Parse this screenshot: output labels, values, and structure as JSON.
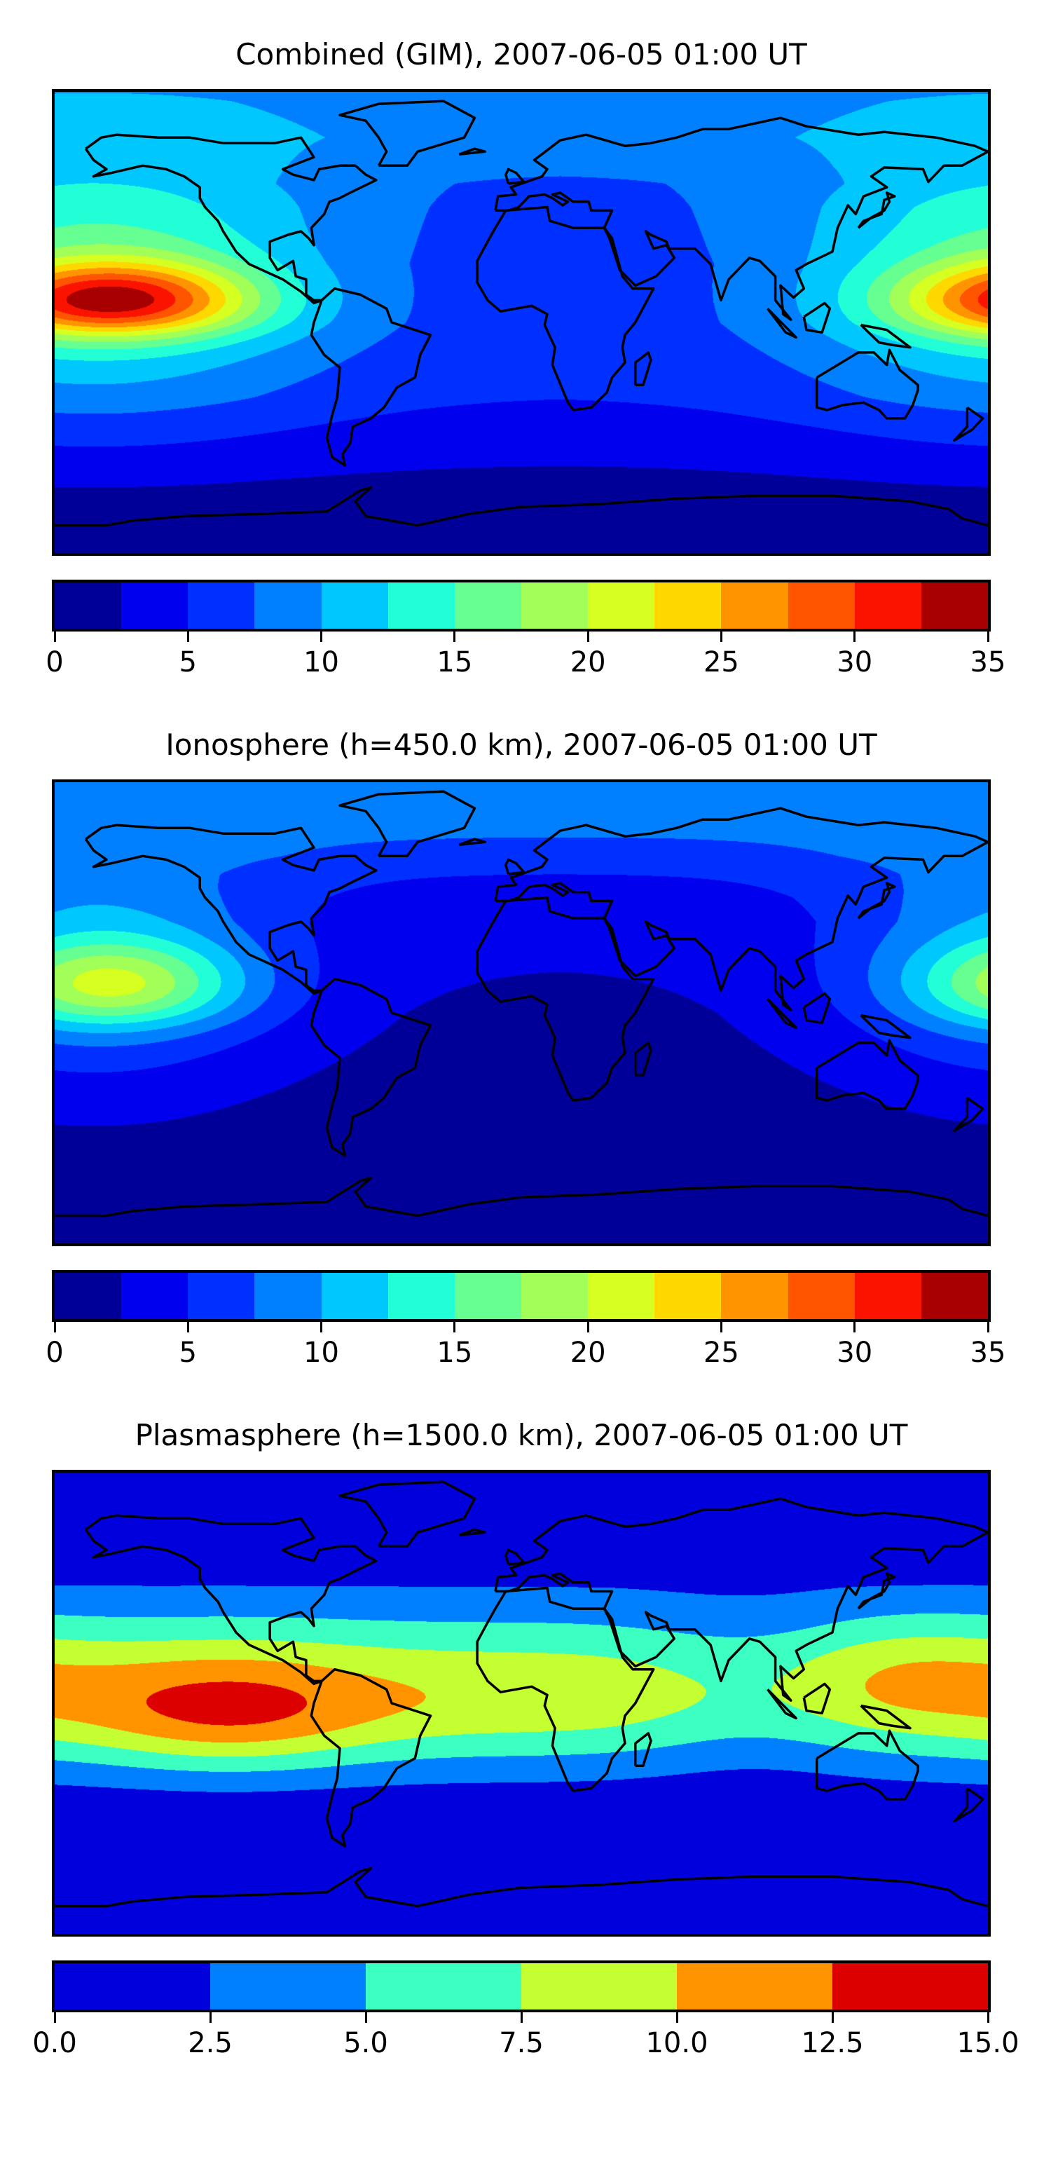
{
  "chart_data": [
    {
      "type": "heatmap",
      "subtype": "filled-contour world map",
      "title": "Combined (GIM), 2007-06-05 01:00 UT",
      "levels": [
        0,
        2.5,
        5,
        7.5,
        10,
        12.5,
        15,
        17.5,
        20,
        22.5,
        25,
        27.5,
        30,
        32.5,
        35
      ],
      "colors": [
        "#000099",
        "#0000ee",
        "#0030ff",
        "#0080ff",
        "#00c8ff",
        "#22ffd6",
        "#66ff92",
        "#a2ff58",
        "#d6ff22",
        "#ffd800",
        "#ff9400",
        "#ff5400",
        "#fa1400",
        "#a80000"
      ],
      "colorbar": {
        "ticks": [
          0,
          5,
          10,
          15,
          20,
          25,
          30,
          35
        ],
        "tick_labels": [
          "0",
          "5",
          "10",
          "15",
          "20",
          "25",
          "30",
          "35"
        ],
        "range": [
          0,
          35
        ],
        "placement": "bottom"
      },
      "features": {
        "max_value_approx": 34,
        "max_location_lonlat": [
          -160,
          8
        ],
        "secondary_max_lonlat": [
          180,
          5
        ],
        "min_region": "Antarctica / South Atlantic-Indian high southern latitudes"
      }
    },
    {
      "type": "heatmap",
      "subtype": "filled-contour world map",
      "title": "Ionosphere  (h=450.0 km), 2007-06-05 01:00 UT",
      "levels": [
        0,
        2.5,
        5,
        7.5,
        10,
        12.5,
        15,
        17.5,
        20,
        22.5,
        25,
        27.5,
        30,
        32.5,
        35
      ],
      "colors": [
        "#000099",
        "#0000ee",
        "#0030ff",
        "#0080ff",
        "#00c8ff",
        "#22ffd6",
        "#66ff92",
        "#a2ff58",
        "#d6ff22",
        "#ffd800",
        "#ff9400",
        "#ff5400",
        "#fa1400",
        "#a80000"
      ],
      "colorbar": {
        "ticks": [
          0,
          5,
          10,
          15,
          20,
          25,
          30,
          35
        ],
        "tick_labels": [
          "0",
          "5",
          "10",
          "15",
          "20",
          "25",
          "30",
          "35"
        ],
        "range": [
          0,
          35
        ],
        "placement": "bottom"
      },
      "features": {
        "max_value_approx": 22,
        "max_location_lonlat": [
          -165,
          10
        ],
        "min_region": "Atlantic / Africa night side"
      }
    },
    {
      "type": "heatmap",
      "subtype": "filled-contour world map",
      "title": "Plasmasphere (h=1500.0 km), 2007-06-05 01:00 UT",
      "levels": [
        0,
        2.5,
        5,
        7.5,
        10,
        12.5,
        15
      ],
      "colors": [
        "#0000dd",
        "#0080ff",
        "#3cffc2",
        "#c4ff32",
        "#ff9400",
        "#dd0000"
      ],
      "colorbar": {
        "ticks": [
          0,
          2.5,
          5,
          7.5,
          10,
          12.5,
          15
        ],
        "tick_labels": [
          "0.0",
          "2.5",
          "5.0",
          "7.5",
          "10.0",
          "12.5",
          "15.0"
        ],
        "range": [
          0,
          15
        ],
        "placement": "bottom"
      },
      "features": {
        "max_value_approx": 14,
        "max_location_lonlat": [
          -111,
          -5
        ],
        "secondary_max_lonlat": [
          155,
          15
        ],
        "min_region": "latitudes poleward of ~40 deg"
      }
    }
  ]
}
